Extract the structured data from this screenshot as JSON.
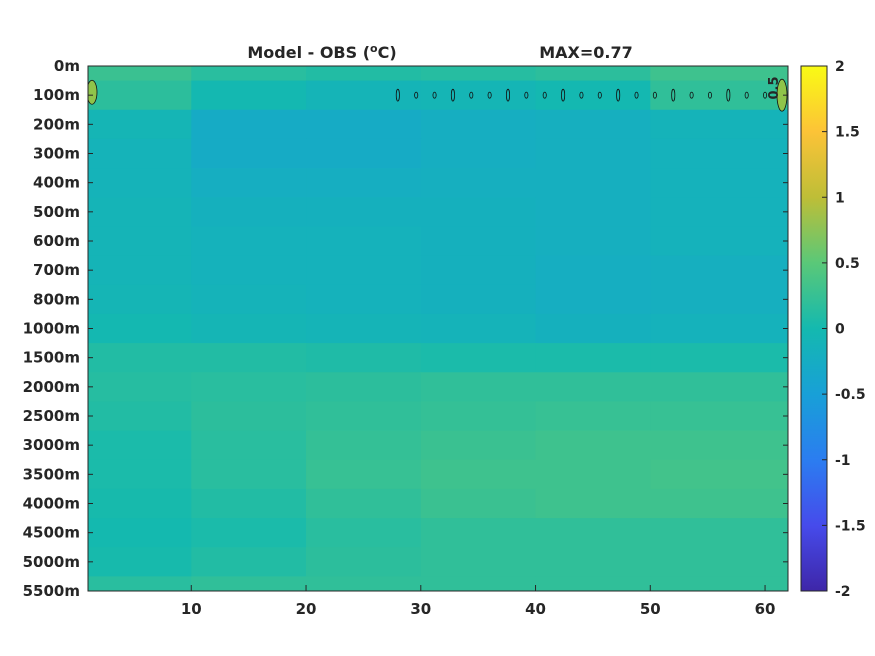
{
  "chart_data": {
    "type": "heatmap",
    "title": "Model - OBS (°C)",
    "title_parts": {
      "prefix": "Model - OBS (",
      "sup": "o",
      "suffix": "C)"
    },
    "max_label": "MAX=0.77",
    "xlabel": "",
    "ylabel": "",
    "x_ticks": [
      10,
      20,
      30,
      40,
      50,
      60
    ],
    "x_range": [
      1,
      62
    ],
    "y_ticks": [
      "0m",
      "100m",
      "200m",
      "300m",
      "400m",
      "500m",
      "600m",
      "700m",
      "800m",
      "1000m",
      "1500m",
      "2000m",
      "2500m",
      "3000m",
      "3500m",
      "4000m",
      "4500m",
      "5000m",
      "5500m"
    ],
    "colorbar": {
      "range": [
        -2,
        2
      ],
      "ticks": [
        "2",
        "1.5",
        "1",
        "0.5",
        "0",
        "-0.5",
        "-1",
        "-1.5",
        "-2"
      ],
      "colormap": "parula"
    },
    "contour_label": "0.5",
    "depth_profile": {
      "depths": [
        "0m",
        "100m",
        "200m",
        "300m",
        "400m",
        "500m",
        "600m",
        "700m",
        "800m",
        "1000m",
        "1500m",
        "2000m",
        "2500m",
        "3000m",
        "3500m",
        "4000m",
        "4500m",
        "5000m",
        "5500m"
      ],
      "x": [
        1,
        10,
        20,
        30,
        40,
        50,
        62
      ],
      "values": [
        [
          0.35,
          0.2,
          0.1,
          0.1,
          0.15,
          0.2,
          0.4
        ],
        [
          0.3,
          0.05,
          -0.1,
          -0.1,
          -0.05,
          0.0,
          0.4
        ],
        [
          0.1,
          -0.25,
          -0.3,
          -0.25,
          -0.2,
          -0.2,
          -0.05
        ],
        [
          0.0,
          -0.25,
          -0.3,
          -0.25,
          -0.2,
          -0.2,
          -0.1
        ],
        [
          -0.05,
          -0.2,
          -0.25,
          -0.2,
          -0.2,
          -0.2,
          -0.1
        ],
        [
          -0.05,
          -0.15,
          -0.2,
          -0.15,
          -0.2,
          -0.2,
          -0.1
        ],
        [
          -0.05,
          -0.15,
          -0.15,
          -0.15,
          -0.2,
          -0.2,
          -0.1
        ],
        [
          -0.05,
          -0.15,
          -0.15,
          -0.15,
          -0.2,
          -0.25,
          -0.15
        ],
        [
          -0.05,
          -0.1,
          -0.15,
          -0.15,
          -0.2,
          -0.25,
          -0.15
        ],
        [
          0.0,
          -0.05,
          -0.1,
          -0.1,
          -0.15,
          -0.2,
          -0.1
        ],
        [
          0.1,
          0.1,
          0.1,
          0.05,
          0.05,
          0.05,
          0.05
        ],
        [
          0.1,
          0.15,
          0.15,
          0.2,
          0.2,
          0.2,
          0.2
        ],
        [
          0.05,
          0.15,
          0.2,
          0.2,
          0.25,
          0.25,
          0.25
        ],
        [
          0.0,
          0.1,
          0.2,
          0.25,
          0.3,
          0.3,
          0.3
        ],
        [
          0.0,
          0.1,
          0.2,
          0.3,
          0.3,
          0.3,
          0.35
        ],
        [
          0.0,
          0.05,
          0.15,
          0.25,
          0.3,
          0.3,
          0.3
        ],
        [
          0.0,
          0.0,
          0.1,
          0.2,
          0.2,
          0.2,
          0.2
        ],
        [
          0.0,
          0.05,
          0.15,
          0.2,
          0.2,
          0.2,
          0.2
        ],
        [
          0.1,
          0.2,
          0.2,
          0.2,
          0.2,
          0.2,
          0.2
        ]
      ]
    },
    "grid": false,
    "legend": "colorbar-right"
  }
}
